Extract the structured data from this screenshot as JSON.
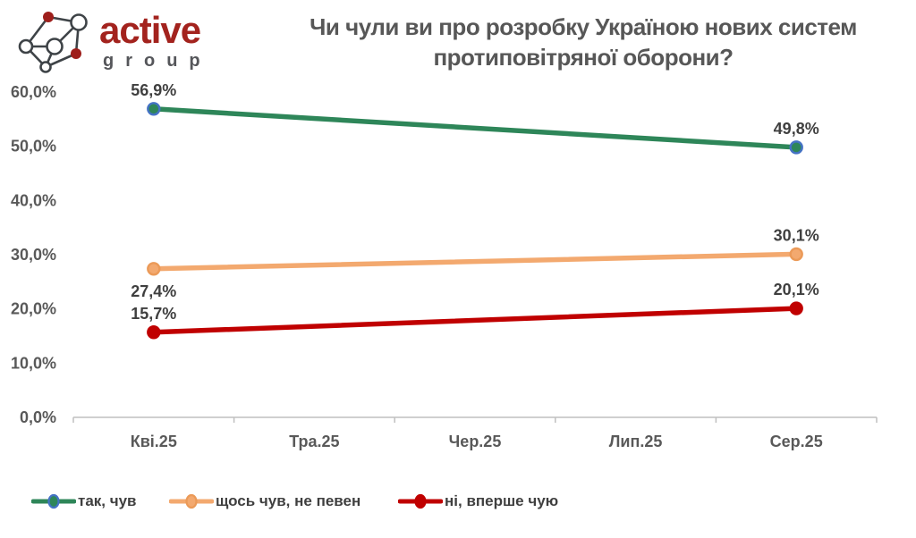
{
  "logo": {
    "brand": "active",
    "sub": "group",
    "brand_color": "#A3231E",
    "sub_color": "#55565A",
    "icon": "network-graph-icon"
  },
  "title": {
    "line1": "Чи чули ви про розробку Україною нових систем",
    "line2": "протиповітряної оборони?"
  },
  "chart_data": {
    "type": "line",
    "title": "Чи чули ви про розробку Україною нових систем протиповітряної оборони?",
    "categories": [
      "Кві.25",
      "Тра.25",
      "Чер.25",
      "Лип.25",
      "Сер.25"
    ],
    "xlabel": "",
    "ylabel": "",
    "ylim": [
      0,
      60
    ],
    "grid": false,
    "legend_position": "bottom",
    "yticks": [
      {
        "label": "60,0%",
        "value": 60
      },
      {
        "label": "50,0%",
        "value": 50
      },
      {
        "label": "40,0%",
        "value": 40
      },
      {
        "label": "30,0%",
        "value": 30
      },
      {
        "label": "20,0%",
        "value": 20
      },
      {
        "label": "10,0%",
        "value": 10
      },
      {
        "label": "0,0%",
        "value": 0
      }
    ],
    "series": [
      {
        "name": "так, чув",
        "color": "#2E8659",
        "marker_fill": "#2E8659",
        "marker_stroke": "#4472C4",
        "points": [
          {
            "category_index": 0,
            "category": "Кві.25",
            "value": 56.9,
            "label": "56,9%",
            "label_pos": "above"
          },
          {
            "category_index": 4,
            "category": "Сер.25",
            "value": 49.8,
            "label": "49,8%",
            "label_pos": "above"
          }
        ]
      },
      {
        "name": "щось чув, не певен",
        "color": "#F3A96F",
        "marker_fill": "#F3A96F",
        "marker_stroke": "#EB9A58",
        "points": [
          {
            "category_index": 0,
            "category": "Кві.25",
            "value": 27.4,
            "label": "27,4%",
            "label_pos": "below"
          },
          {
            "category_index": 4,
            "category": "Сер.25",
            "value": 30.1,
            "label": "30,1%",
            "label_pos": "above"
          }
        ]
      },
      {
        "name": "ні, вперше чую",
        "color": "#C00000",
        "marker_fill": "#C00000",
        "marker_stroke": "#C00000",
        "points": [
          {
            "category_index": 0,
            "category": "Кві.25",
            "value": 15.7,
            "label": "15,7%",
            "label_pos": "above"
          },
          {
            "category_index": 4,
            "category": "Сер.25",
            "value": 20.1,
            "label": "20,1%",
            "label_pos": "above"
          }
        ]
      }
    ]
  },
  "colors": {
    "axis": "#BFBFBF",
    "tick_label": "#595959",
    "data_label": "#3F3F3F",
    "title_text": "#575757"
  }
}
